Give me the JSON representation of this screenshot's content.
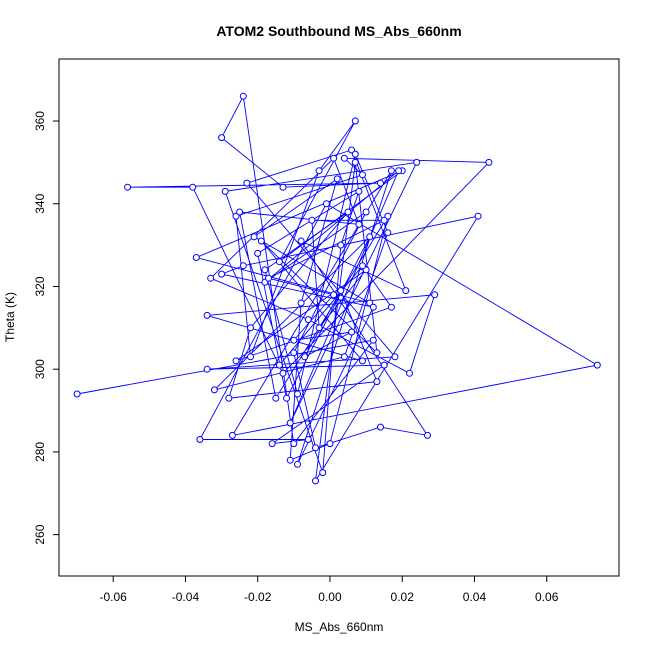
{
  "chart_data": {
    "type": "line",
    "title": "ATOM2 Southbound MS_Abs_660nm",
    "xlabel": "MS_Abs_660nm",
    "ylabel": "Theta (K)",
    "xlim": [
      -0.075,
      0.08
    ],
    "ylim": [
      250,
      375
    ],
    "x_ticks": [
      -0.06,
      -0.04,
      -0.02,
      0.0,
      0.02,
      0.04,
      0.06
    ],
    "x_tick_labels": [
      "-0.06",
      "-0.04",
      "-0.02",
      "0.00",
      "0.02",
      "0.04",
      "0.06"
    ],
    "y_ticks": [
      260,
      280,
      300,
      320,
      340,
      360
    ],
    "y_tick_labels": [
      "260",
      "280",
      "300",
      "320",
      "340",
      "360"
    ],
    "grid": false,
    "colors": {
      "series": "#0000ff",
      "frame": "#000000",
      "background": "#ffffff"
    },
    "series": [
      {
        "marker": "open-circle",
        "x": [
          -0.07,
          0.012,
          -0.01,
          -0.024,
          -0.03,
          -0.013,
          0.014,
          -0.056,
          -0.038,
          -0.013,
          0.044,
          0.004,
          0.009,
          -0.026,
          -0.022,
          -0.003,
          0.007,
          -0.014,
          0.02,
          -0.037,
          0.011,
          -0.021,
          0.002,
          -0.008,
          -0.011,
          0.0,
          0.016,
          -0.015,
          -0.025,
          0.008,
          0.001,
          -0.033,
          -0.006,
          0.022,
          0.029,
          -0.034,
          0.009,
          -0.019,
          0.013,
          0.007,
          -0.004,
          0.041,
          -0.024,
          -0.03,
          0.012,
          -0.009,
          0.017,
          -0.027,
          0.074,
          -0.001,
          -0.036,
          -0.006,
          -0.016,
          0.015,
          -0.034,
          0.018,
          -0.023,
          0.006,
          0.021,
          -0.008,
          0.027,
          0.014,
          -0.004,
          -0.01,
          0.01,
          -0.018,
          0.019,
          -0.011,
          0.024,
          -0.029,
          -0.002,
          0.003,
          0.008,
          -0.02,
          -0.012,
          0.011,
          -0.032,
          0.004,
          0.016,
          0.007,
          -0.009,
          -0.018,
          0.005,
          -0.022,
          -0.028,
          0.013,
          0.003,
          -0.007,
          0.006,
          -0.01,
          0.001,
          -0.017,
          0.015,
          -0.005,
          -0.003,
          0.01,
          -0.026,
          0.017,
          0.009,
          -0.014
        ],
        "y": [
          294,
          307,
          282,
          366,
          356,
          344,
          345,
          344,
          344,
          299,
          350,
          351,
          347,
          337,
          303,
          348,
          360,
          326,
          348,
          327,
          316,
          332,
          346,
          316,
          278,
          282,
          337,
          293,
          338,
          335,
          351,
          322,
          312,
          299,
          318,
          313,
          302,
          331,
          304,
          350,
          273,
          337,
          325,
          323,
          315,
          277,
          348,
          284,
          301,
          340,
          283,
          283,
          282,
          301,
          300,
          303,
          345,
          353,
          319,
          331,
          284,
          286,
          281,
          304,
          338,
          321,
          348,
          287,
          350,
          343,
          275,
          330,
          343,
          328,
          293,
          332,
          295,
          303,
          333,
          352,
          294,
          324,
          338,
          310,
          293,
          297,
          319,
          303,
          309,
          307,
          318,
          322,
          336,
          336,
          310,
          324,
          302,
          315,
          325,
          301
        ]
      }
    ]
  }
}
